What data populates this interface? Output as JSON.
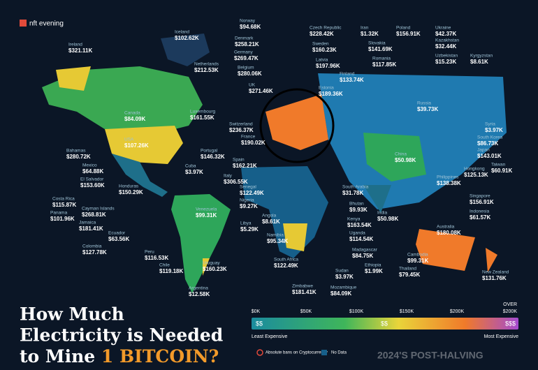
{
  "logo": "nft evening",
  "countries": [
    {
      "name": "Ireland",
      "value": "$321.11K"
    },
    {
      "name": "Iceland",
      "value": "$102.62K"
    },
    {
      "name": "Norway",
      "value": "$94.68K"
    },
    {
      "name": "Czech Republic",
      "value": "$228.42K"
    },
    {
      "name": "Iran",
      "value": "$1.32K"
    },
    {
      "name": "Poland",
      "value": "$156.91K"
    },
    {
      "name": "Ukraine",
      "value": "$42.37K"
    },
    {
      "name": "Denmark",
      "value": "$258.21K"
    },
    {
      "name": "Sweden",
      "value": "$160.23K"
    },
    {
      "name": "Slovakia",
      "value": "$141.69K"
    },
    {
      "name": "Kazakhstan",
      "value": "$32.44K"
    },
    {
      "name": "Germany",
      "value": "$269.47K"
    },
    {
      "name": "Netherlands",
      "value": "$212.53K"
    },
    {
      "name": "Latvia",
      "value": "$197.96K"
    },
    {
      "name": "Romania",
      "value": "$117.85K"
    },
    {
      "name": "Uzbekistan",
      "value": "$15.23K"
    },
    {
      "name": "Kyrgyzstan",
      "value": "$8.61K"
    },
    {
      "name": "Belgium",
      "value": "$280.06K"
    },
    {
      "name": "Finland",
      "value": "$133.74K"
    },
    {
      "name": "UK",
      "value": "$271.46K"
    },
    {
      "name": "Estonia",
      "value": "$189.36K"
    },
    {
      "name": "Russia",
      "value": "$39.73K"
    },
    {
      "name": "Canada",
      "value": "$84.09K"
    },
    {
      "name": "Luxembourg",
      "value": "$161.55K"
    },
    {
      "name": "Switzerland",
      "value": "$236.37K"
    },
    {
      "name": "Syria",
      "value": "$3.97K"
    },
    {
      "name": "USA",
      "value": "$107.26K"
    },
    {
      "name": "France",
      "value": "$190.02K"
    },
    {
      "name": "South Korea",
      "value": "$86.73K"
    },
    {
      "name": "Portugal",
      "value": "$146.32K"
    },
    {
      "name": "Japan",
      "value": "$143.01K"
    },
    {
      "name": "China",
      "value": "$50.98K"
    },
    {
      "name": "Bahamas",
      "value": "$280.72K"
    },
    {
      "name": "Spain",
      "value": "$162.21K"
    },
    {
      "name": "Taiwan",
      "value": "$60.91K"
    },
    {
      "name": "Cuba",
      "value": "$3.97K"
    },
    {
      "name": "Italy",
      "value": "$306.55K"
    },
    {
      "name": "Hongkong",
      "value": "$125.13K"
    },
    {
      "name": "Mexico",
      "value": "$64.88K"
    },
    {
      "name": "Philippines",
      "value": "$138.38K"
    },
    {
      "name": "El Salvador",
      "value": "$153.60K"
    },
    {
      "name": "Honduras",
      "value": "$150.29K"
    },
    {
      "name": "Senegal",
      "value": "$122.49K"
    },
    {
      "name": "South Arabia",
      "value": "$31.78K"
    },
    {
      "name": "Nigeria",
      "value": "$9.27K"
    },
    {
      "name": "Costa Rica",
      "value": "$115.87K"
    },
    {
      "name": "Singapore",
      "value": "$156.91K"
    },
    {
      "name": "Cayman Islands",
      "value": "$268.81K"
    },
    {
      "name": "Bhutan",
      "value": "$9.93K"
    },
    {
      "name": "Venezuela",
      "value": "$99.31K"
    },
    {
      "name": "Angola",
      "value": "$8.61K"
    },
    {
      "name": "Libya",
      "value": "$5.29K"
    },
    {
      "name": "Panama",
      "value": "$101.96K"
    },
    {
      "name": "Indonesia",
      "value": "$61.57K"
    },
    {
      "name": "India",
      "value": "$50.98K"
    },
    {
      "name": "Jamaica",
      "value": "$181.41K"
    },
    {
      "name": "Kenya",
      "value": "$163.54K"
    },
    {
      "name": "Australia",
      "value": "$180.08K"
    },
    {
      "name": "Ecuador",
      "value": "$63.56K"
    },
    {
      "name": "Namibia",
      "value": "$95.34K"
    },
    {
      "name": "Uganda",
      "value": "$114.54K"
    },
    {
      "name": "Colombia",
      "value": "$127.78K"
    },
    {
      "name": "Madagascar",
      "value": "$84.75K"
    },
    {
      "name": "Peru",
      "value": "$116.53K"
    },
    {
      "name": "Cambodia",
      "value": "$99.31K"
    },
    {
      "name": "South Africa",
      "value": "$122.49K"
    },
    {
      "name": "Uruguay",
      "value": "$160.23K"
    },
    {
      "name": "Chile",
      "value": "$119.18K"
    },
    {
      "name": "Thailand",
      "value": "$79.45K"
    },
    {
      "name": "Ethiopia",
      "value": "$1.99K"
    },
    {
      "name": "Sudan",
      "value": "$3.97K"
    },
    {
      "name": "New Zealand",
      "value": "$131.76K"
    },
    {
      "name": "Argentina",
      "value": "$12.58K"
    },
    {
      "name": "Zimbabwe",
      "value": "$181.41K"
    },
    {
      "name": "Mozambique",
      "value": "$84.09K"
    }
  ],
  "title": {
    "line1": "How Much",
    "line2": "Electricity is Needed",
    "line3a": "to Mine ",
    "line3b": "1 BITCOIN?"
  },
  "legend": {
    "ticks": [
      "$0K",
      "$50K",
      "$100K",
      "$150K",
      "$200K"
    ],
    "over": "OVER",
    "over_value": "$200K",
    "bar_left": "$$",
    "bar_mid": "$$",
    "bar_right": "$$$",
    "low": "Least Expensive",
    "high": "Most Expensive",
    "ban": "Absolute bans on Cryptocurrency",
    "nodata": "No Data"
  },
  "footer": "2024'S POST-HALVING"
}
